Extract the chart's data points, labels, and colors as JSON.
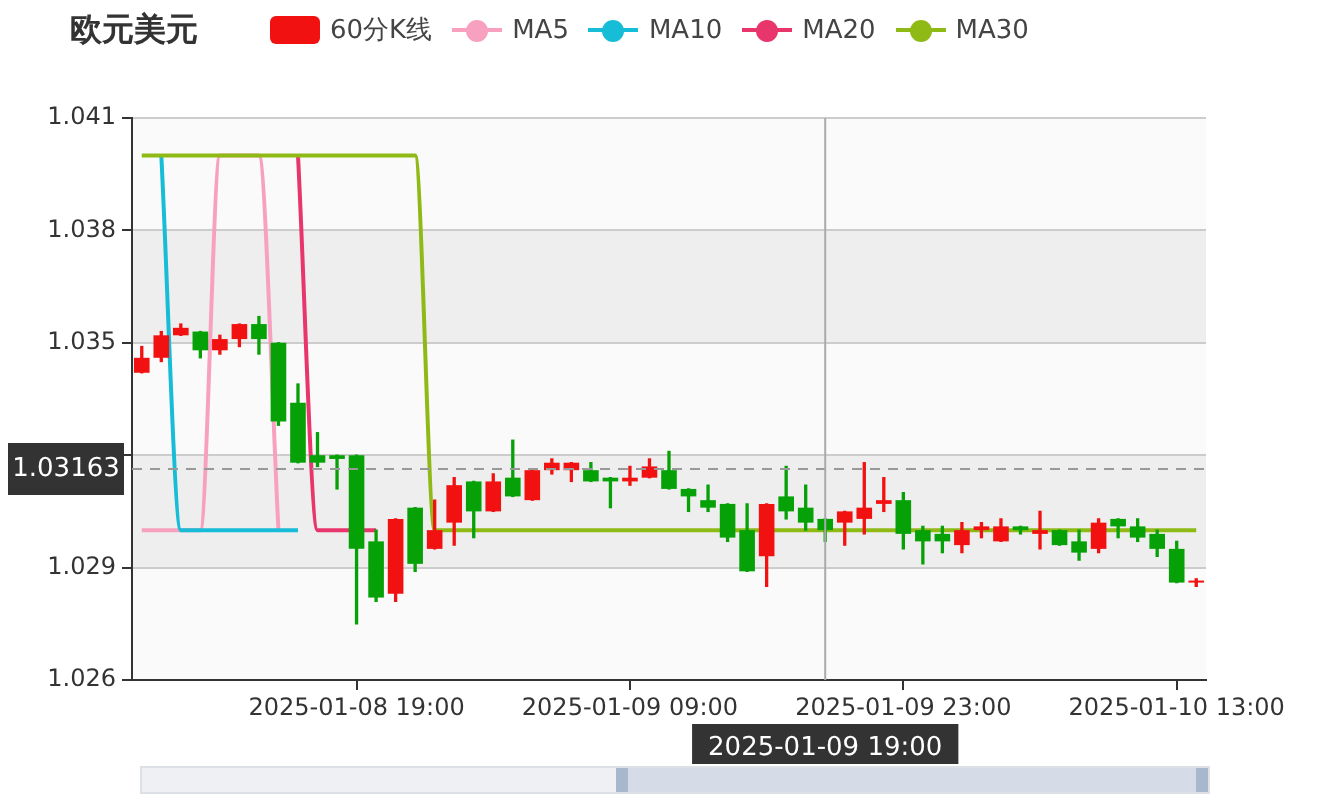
{
  "chart_data": {
    "type": "candlestick",
    "title": "欧元美元",
    "categories": [
      null,
      null,
      null,
      null,
      null,
      null,
      null,
      null,
      null,
      null,
      null,
      "2025-01-08 19:00",
      null,
      null,
      null,
      null,
      null,
      null,
      null,
      null,
      null,
      null,
      null,
      null,
      null,
      "2025-01-09 09:00",
      null,
      null,
      null,
      null,
      null,
      null,
      null,
      null,
      null,
      "2025-01-09 19:00",
      null,
      null,
      null,
      "2025-01-09 23:00",
      null,
      null,
      null,
      null,
      null,
      null,
      null,
      null,
      null,
      null,
      null,
      null,
      null,
      "2025-01-10 13:00",
      null
    ],
    "series": [
      {
        "name": "60分K线",
        "color": "#f21111",
        "colors": [
          "#f21111",
          "#f21111",
          "#f21111",
          "#06a106",
          "#f21111",
          "#f21111",
          "#06a106",
          "#06a106",
          "#06a106",
          "#06a106",
          "#06a106",
          "#06a106",
          "#06a106",
          "#f21111",
          "#06a106",
          "#f21111",
          "#f21111",
          "#06a106",
          "#f21111",
          "#06a106",
          "#f21111",
          "#f21111",
          "#f21111",
          "#06a106",
          "#06a106",
          "#f21111",
          "#f21111",
          "#06a106",
          "#06a106",
          "#06a106",
          "#06a106",
          "#06a106",
          "#f21111",
          "#06a106",
          "#06a106",
          "#06a106",
          "#f21111",
          "#f21111",
          "#f21111",
          "#06a106",
          "#06a106",
          "#06a106",
          "#f21111",
          "#f21111",
          "#f21111",
          "#06a106",
          "#f21111",
          "#06a106",
          "#06a106",
          "#f21111",
          "#06a106",
          "#06a106",
          "#06a106",
          "#06a106",
          "#f21111"
        ],
        "ohlc": [
          [
            1.0342,
            1.0349,
            1.0342,
            1.0346
          ],
          [
            1.0346,
            1.0353,
            1.0345,
            1.0352
          ],
          [
            1.0352,
            1.0355,
            1.0352,
            1.0354
          ],
          [
            1.0353,
            1.0353,
            1.0346,
            1.0348
          ],
          [
            1.0348,
            1.0352,
            1.0347,
            1.0351
          ],
          [
            1.0351,
            1.0355,
            1.0349,
            1.0355
          ],
          [
            1.0355,
            1.0357,
            1.0347,
            1.0351
          ],
          [
            1.035,
            1.035,
            1.0328,
            1.0329
          ],
          [
            1.0334,
            1.0339,
            1.0318,
            1.0318
          ],
          [
            1.032,
            1.0326,
            1.0317,
            1.0318
          ],
          [
            1.032,
            1.032,
            1.0311,
            1.0319
          ],
          [
            1.032,
            1.032,
            1.0275,
            1.0295
          ],
          [
            1.0297,
            1.03,
            1.0281,
            1.0282
          ],
          [
            1.0283,
            1.0303,
            1.0281,
            1.0303
          ],
          [
            1.0306,
            1.0306,
            1.0289,
            1.0291
          ],
          [
            1.0295,
            1.0308,
            1.0295,
            1.03
          ],
          [
            1.0302,
            1.0314,
            1.0296,
            1.0312
          ],
          [
            1.0313,
            1.0313,
            1.0298,
            1.0305
          ],
          [
            1.0305,
            1.0315,
            1.0305,
            1.0313
          ],
          [
            1.0314,
            1.0324,
            1.0309,
            1.0309
          ],
          [
            1.0308,
            1.0316,
            1.0308,
            1.0316
          ],
          [
            1.0316,
            1.0319,
            1.0315,
            1.0318
          ],
          [
            1.0316,
            1.0318,
            1.0313,
            1.0318
          ],
          [
            1.0316,
            1.0318,
            1.0313,
            1.0313
          ],
          [
            1.0314,
            1.0314,
            1.0306,
            1.0313
          ],
          [
            1.0313,
            1.0317,
            1.0312,
            1.0314
          ],
          [
            1.0314,
            1.0319,
            1.0314,
            1.0317
          ],
          [
            1.0316,
            1.0321,
            1.0311,
            1.0311
          ],
          [
            1.0311,
            1.0311,
            1.0305,
            1.0309
          ],
          [
            1.0308,
            1.0312,
            1.0305,
            1.0306
          ],
          [
            1.0307,
            1.0307,
            1.0297,
            1.0298
          ],
          [
            1.03,
            1.0307,
            1.0289,
            1.0289
          ],
          [
            1.0293,
            1.0307,
            1.0285,
            1.0307
          ],
          [
            1.0309,
            1.0317,
            1.0303,
            1.0305
          ],
          [
            1.0306,
            1.0312,
            1.03,
            1.0302
          ],
          [
            1.0303,
            1.0303,
            1.0297,
            1.03
          ],
          [
            1.0302,
            1.0305,
            1.0296,
            1.0305
          ],
          [
            1.0303,
            1.0318,
            1.0299,
            1.0306
          ],
          [
            1.0307,
            1.0314,
            1.0305,
            1.0308
          ],
          [
            1.0308,
            1.031,
            1.0295,
            1.0299
          ],
          [
            1.03,
            1.0301,
            1.0291,
            1.0297
          ],
          [
            1.0299,
            1.0301,
            1.0294,
            1.0297
          ],
          [
            1.0296,
            1.0302,
            1.0294,
            1.03
          ],
          [
            1.03,
            1.0302,
            1.0298,
            1.0301
          ],
          [
            1.0297,
            1.0303,
            1.0297,
            1.0301
          ],
          [
            1.0301,
            1.0301,
            1.0299,
            1.03
          ],
          [
            1.0299,
            1.0305,
            1.0295,
            1.03
          ],
          [
            1.03,
            1.03,
            1.0296,
            1.0296
          ],
          [
            1.0297,
            1.03,
            1.0292,
            1.0294
          ],
          [
            1.0295,
            1.0303,
            1.0294,
            1.0302
          ],
          [
            1.0303,
            1.0303,
            1.0298,
            1.0301
          ],
          [
            1.0301,
            1.0303,
            1.0297,
            1.0298
          ],
          [
            1.0299,
            1.03,
            1.0293,
            1.0295
          ],
          [
            1.0295,
            1.0297,
            1.0286,
            1.0286
          ],
          [
            1.0286,
            1.0287,
            1.0285,
            1.0286
          ]
        ]
      },
      {
        "name": "MA5",
        "type": "line",
        "color": "#f8a0bf",
        "values": [
          1.03,
          1.03,
          null,
          1.03,
          1.04,
          null,
          1.04,
          1.03,
          null,
          null,
          null,
          null,
          null,
          null,
          null,
          null,
          null,
          null,
          null,
          null,
          null,
          null,
          null,
          null,
          null,
          null,
          null,
          null,
          null,
          null,
          null,
          null,
          null,
          null,
          null,
          null,
          null,
          null,
          null,
          null,
          null,
          null,
          null,
          null,
          null,
          null,
          null,
          null,
          null,
          null,
          null,
          null,
          null,
          null,
          null
        ]
      },
      {
        "name": "MA10",
        "type": "line",
        "color": "#17bcd6",
        "values": [
          null,
          1.04,
          1.03,
          1.03,
          1.03,
          1.03,
          1.03,
          1.03,
          1.03,
          null,
          null,
          null,
          null,
          null,
          null,
          null,
          null,
          null,
          null,
          null,
          null,
          null,
          null,
          null,
          null,
          null,
          null,
          null,
          null,
          null,
          null,
          null,
          null,
          null,
          null,
          null,
          null,
          null,
          null,
          null,
          null,
          null,
          null,
          null,
          null,
          null,
          null,
          null,
          null,
          null,
          null,
          null,
          null,
          null,
          null
        ]
      },
      {
        "name": "MA20",
        "type": "line",
        "color": "#e8366d",
        "values": [
          null,
          null,
          null,
          null,
          null,
          null,
          null,
          null,
          1.04,
          1.03,
          1.03,
          null,
          1.03,
          null,
          null,
          null,
          null,
          null,
          null,
          null,
          null,
          null,
          null,
          null,
          null,
          null,
          null,
          null,
          null,
          null,
          null,
          null,
          null,
          null,
          null,
          null,
          null,
          null,
          null,
          null,
          null,
          null,
          null,
          null,
          null,
          null,
          null,
          null,
          null,
          null,
          null,
          null,
          null,
          null,
          null
        ]
      },
      {
        "name": "MA30",
        "type": "line",
        "color": "#8fba16",
        "values": [
          1.04,
          1.04,
          1.04,
          1.04,
          1.04,
          1.04,
          1.04,
          1.04,
          1.04,
          1.04,
          1.04,
          1.04,
          1.04,
          1.04,
          1.04,
          1.03,
          1.03,
          1.03,
          1.03,
          1.03,
          1.03,
          1.03,
          1.03,
          1.03,
          1.03,
          1.03,
          1.03,
          1.03,
          1.03,
          1.03,
          null,
          1.03,
          null,
          1.03,
          1.03,
          1.03,
          1.03,
          1.03,
          1.03,
          null,
          1.03,
          1.03,
          1.03,
          1.03,
          1.03,
          1.03,
          1.03,
          1.03,
          1.03,
          1.03,
          1.03,
          1.03,
          1.03,
          1.03,
          1.03
        ]
      }
    ],
    "ylim": [
      1.026,
      1.041
    ],
    "yticks": [
      1.026,
      1.029,
      {
        "value": 1.032,
        "label": null
      },
      1.035,
      1.038,
      1.041
    ],
    "ref_lines": [
      {
        "axis": "y",
        "value": 1.03163,
        "label": "1.03163",
        "color": "#999999",
        "line_style": "dashed"
      },
      {
        "axis": "x",
        "value": "2025-01-09 19:00",
        "label": "2025-01-09 19:00",
        "color": "#aaaaaa"
      }
    ],
    "grid": "y",
    "legend": "top",
    "marker": "none"
  }
}
